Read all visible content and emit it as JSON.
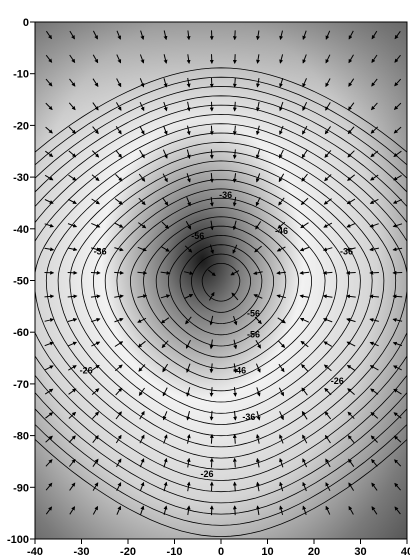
{
  "chart_data": {
    "type": "contour",
    "title": "",
    "xlabel": "",
    "ylabel": "",
    "xlim": [
      -40,
      40
    ],
    "ylim": [
      -100,
      0
    ],
    "x_ticks": [
      -40,
      -30,
      -20,
      -10,
      0,
      10,
      20,
      30,
      40
    ],
    "y_ticks": [
      0,
      -10,
      -20,
      -30,
      -40,
      -50,
      -60,
      -70,
      -80,
      -90,
      -100
    ],
    "x_tick_labels": [
      "-40",
      "-30",
      "-20",
      "-10",
      "0",
      "10",
      "20",
      "30",
      "40"
    ],
    "y_tick_labels": [
      "0",
      "-10",
      "-20",
      "-30",
      "-40",
      "-50",
      "-60",
      "-70",
      "-80",
      "-90",
      "-100"
    ],
    "source": {
      "x": 0,
      "y": -50
    },
    "contour_labels": [
      {
        "text": "-36",
        "x": 1,
        "y": -34
      },
      {
        "text": "-36",
        "x": -26,
        "y": -45
      },
      {
        "text": "-36",
        "x": 27,
        "y": -45
      },
      {
        "text": "-46",
        "x": 13,
        "y": -41
      },
      {
        "text": "-56",
        "x": -5,
        "y": -42
      },
      {
        "text": "-56",
        "x": 7,
        "y": -57
      },
      {
        "text": "-56",
        "x": 7,
        "y": -61
      },
      {
        "text": "-46",
        "x": 4,
        "y": -68
      },
      {
        "text": "-36",
        "x": 6,
        "y": -77
      },
      {
        "text": "-26",
        "x": -29,
        "y": -68
      },
      {
        "text": "-26",
        "x": 25,
        "y": -70
      },
      {
        "text": "-26",
        "x": -3,
        "y": -88
      }
    ],
    "grid": false,
    "legend": "none",
    "colors": {
      "background_light": "#f4f4f4",
      "background_dark": "#4a4a4a",
      "contour": "#000000",
      "arrow": "#000000"
    }
  }
}
